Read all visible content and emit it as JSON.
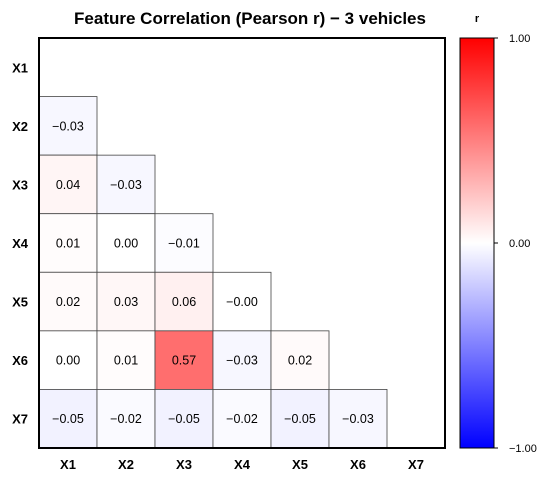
{
  "chart_data": {
    "type": "heatmap",
    "title": "Feature Correlation (Pearson r) − 3 vehicles",
    "x_categories": [
      "X1",
      "X2",
      "X3",
      "X4",
      "X5",
      "X6",
      "X7"
    ],
    "y_categories": [
      "X1",
      "X2",
      "X3",
      "X4",
      "X5",
      "X6",
      "X7"
    ],
    "lower_triangle_values": [
      [],
      [
        -0.03
      ],
      [
        0.04,
        -0.03
      ],
      [
        0.01,
        0.0,
        -0.01
      ],
      [
        0.02,
        0.03,
        0.06,
        -0.0
      ],
      [
        0.0,
        0.01,
        0.57,
        -0.03,
        0.02
      ],
      [
        -0.05,
        -0.02,
        -0.05,
        -0.02,
        -0.05,
        -0.03
      ]
    ],
    "value_labels": [
      [],
      [
        "−0.03"
      ],
      [
        "0.04",
        "−0.03"
      ],
      [
        "0.01",
        "0.00",
        "−0.01"
      ],
      [
        "0.02",
        "0.03",
        "0.06",
        "−0.00"
      ],
      [
        "0.00",
        "0.01",
        "0.57",
        "−0.03",
        "0.02"
      ],
      [
        "−0.05",
        "−0.02",
        "−0.05",
        "−0.02",
        "−0.05",
        "−0.03"
      ]
    ],
    "colorbar": {
      "label": "r",
      "range": [
        -1,
        1
      ],
      "ticks": [
        "1.00",
        "0.00",
        "−1.00"
      ],
      "colors": {
        "low": "#0000ff",
        "mid": "#ffffff",
        "high": "#ff0000"
      }
    }
  }
}
